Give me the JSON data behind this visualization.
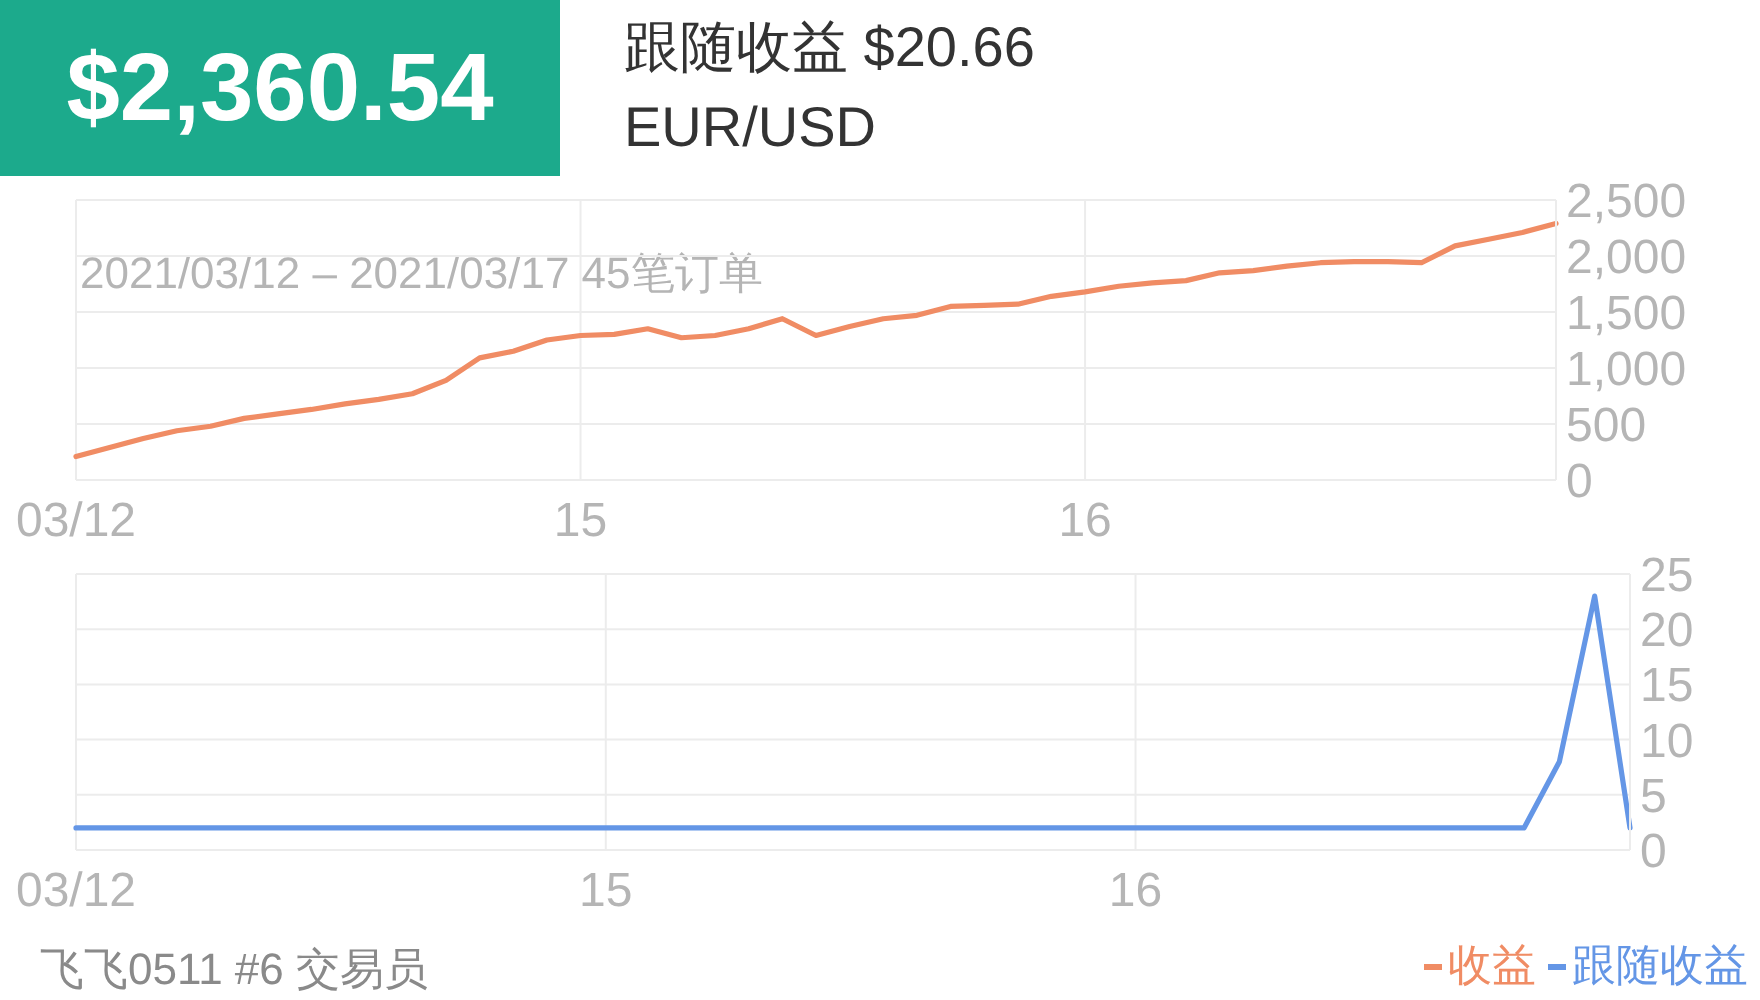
{
  "chart_data": [
    {
      "type": "line",
      "title": "$2,360.54",
      "subtitle": "跟随收益 $20.66",
      "annotations": [
        "EUR/USD",
        "2021/03/12 – 2021/03/17 45笔订单"
      ],
      "categories": [
        "03/12",
        null,
        null,
        null,
        null,
        null,
        null,
        null,
        null,
        null,
        null,
        null,
        null,
        null,
        null,
        "15",
        null,
        null,
        null,
        null,
        null,
        null,
        null,
        null,
        null,
        null,
        null,
        null,
        null,
        null,
        "16",
        null,
        null,
        null,
        null,
        null,
        null,
        null,
        null,
        null,
        null,
        null,
        null,
        null,
        null
      ],
      "series": [
        {
          "name": "收益",
          "color": "#f08c64",
          "values": [
            210,
            290,
            370,
            440,
            480,
            550,
            590,
            630,
            680,
            720,
            770,
            890,
            1090,
            1150,
            1250,
            1290,
            1300,
            1350,
            1270,
            1290,
            1350,
            1440,
            1290,
            1370,
            1440,
            1470,
            1550,
            1560,
            1570,
            1640,
            1680,
            1730,
            1760,
            1780,
            1850,
            1870,
            1910,
            1940,
            1950,
            1950,
            1940,
            2090,
            2150,
            2210,
            2290
          ]
        }
      ],
      "ylim": [
        0,
        2500
      ],
      "yticks": [
        0,
        500,
        {
          "value": 1000,
          "label": "1,000"
        },
        {
          "value": 1500,
          "label": "1,500"
        },
        {
          "value": 2000,
          "label": "2,000"
        },
        {
          "value": 2500,
          "label": "2,500"
        }
      ],
      "grid": true,
      "legend": "bottom right"
    },
    {
      "type": "line",
      "annotations": [
        "飞飞0511 #6 交易员"
      ],
      "categories": [
        "03/12",
        null,
        null,
        null,
        null,
        null,
        null,
        null,
        null,
        null,
        null,
        null,
        null,
        null,
        null,
        "15",
        null,
        null,
        null,
        null,
        null,
        null,
        null,
        null,
        null,
        null,
        null,
        null,
        null,
        null,
        "16",
        null,
        null,
        null,
        null,
        null,
        null,
        null,
        null,
        null,
        null,
        null,
        null,
        null,
        null
      ],
      "series": [
        {
          "name": "跟随收益",
          "color": "#6496e6",
          "values": [
            2,
            2,
            2,
            2,
            2,
            2,
            2,
            2,
            2,
            2,
            2,
            2,
            2,
            2,
            2,
            2,
            2,
            2,
            2,
            2,
            2,
            2,
            2,
            2,
            2,
            2,
            2,
            2,
            2,
            2,
            2,
            2,
            2,
            2,
            2,
            2,
            2,
            2,
            2,
            2,
            2,
            2,
            8,
            23,
            2
          ]
        }
      ],
      "ylim": [
        0,
        25
      ],
      "yticks": [
        0,
        5,
        10,
        15,
        20,
        25
      ],
      "grid": true,
      "legend": "bottom right"
    }
  ]
}
